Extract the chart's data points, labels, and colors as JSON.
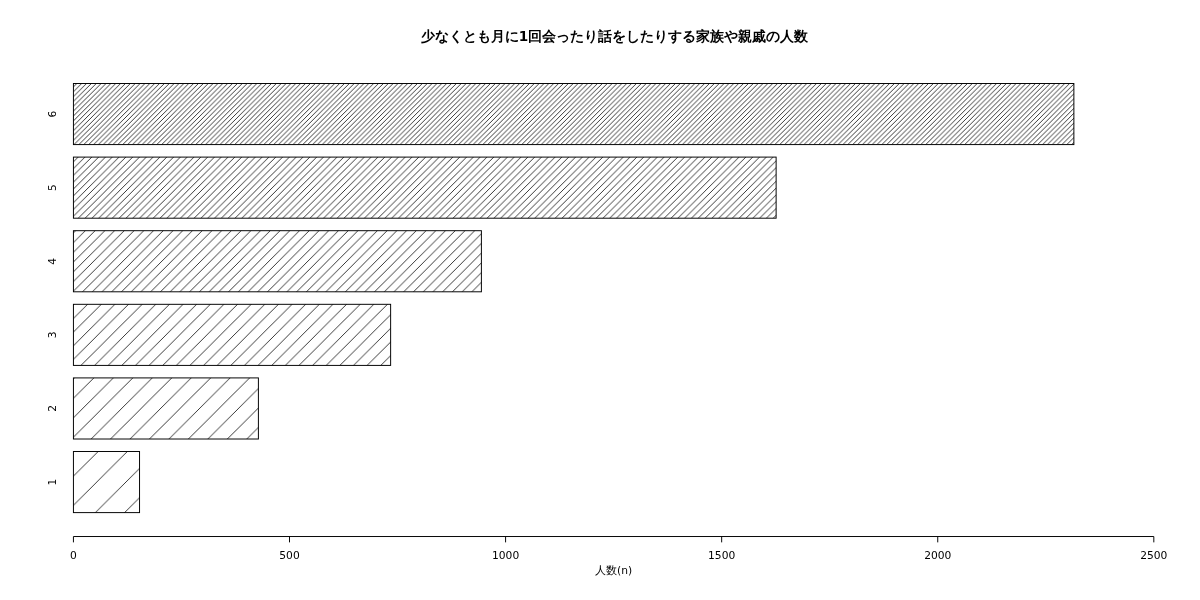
{
  "chart_data": {
    "type": "bar",
    "orientation": "horizontal",
    "title": "少なくとも月に1回会ったり話をしたりする家族や親戚の人数",
    "xlabel": "人数(n)",
    "categories": [
      "6",
      "5",
      "4",
      "3",
      "2",
      "1"
    ],
    "values": [
      2315,
      1626,
      944,
      734,
      428,
      153
    ],
    "color": "#000000",
    "xlim": [
      0,
      2500
    ],
    "xticks": [
      0,
      500,
      1000,
      1500,
      2000,
      2500
    ],
    "grid": false
  }
}
